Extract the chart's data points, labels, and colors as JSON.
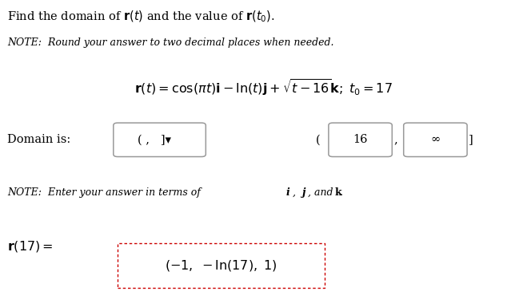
{
  "title_line": "Find the domain of $\\mathbf{r}(t)$ and the value of $\\mathbf{r}(t_0)$.",
  "note1": "NOTE:  Round your answer to two decimal places when needed.",
  "equation": "$\\mathbf{r}(t) = \\cos(\\pi t)\\mathbf{i} - \\ln(t)\\mathbf{j} + \\sqrt{t - 16}\\mathbf{k};\\; t_0 = 17$",
  "domain_label": "Domain is:",
  "domain_box1_text": "( ,   ]▾",
  "domain_open_paren": "(",
  "domain_value1": "16",
  "domain_value2": "∞",
  "domain_close": "]",
  "note2_plain": "NOTE:  Enter your answer in terms of ",
  "note2_i": "i",
  "note2_comma_j": ", ",
  "note2_j": "j",
  "note2_and": ", and ",
  "note2_k": "k",
  "note2_period": ".",
  "r17_label": "$\\mathbf{r}(17) =$",
  "r17_value": "$(-1, \\ -\\ln(17), \\ 1)$",
  "bg_color": "#ffffff",
  "text_color": "#000000",
  "box_edge_color": "#999999",
  "dashed_box_color": "#cc0000",
  "fig_width": 6.59,
  "fig_height": 3.85
}
